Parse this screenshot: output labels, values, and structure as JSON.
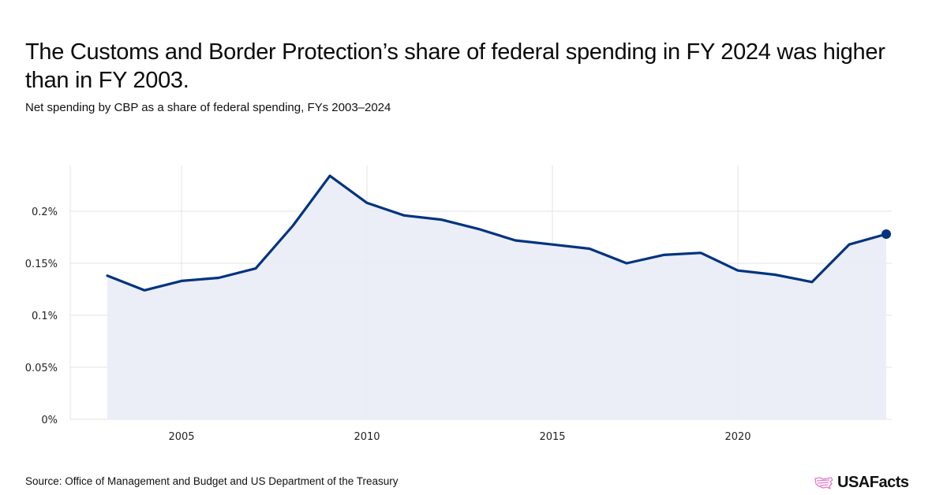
{
  "header": {
    "title": "The Customs and Border Protection’s share of federal spending in FY 2024 was higher than in FY 2003.",
    "subtitle": "Net spending by CBP as a share of federal spending, FYs 2003–2024"
  },
  "footer": {
    "source": "Source: Office of Management and Budget and US Department of the Treasury",
    "logo_text": "USAFacts",
    "logo_icon": "us-map-flag-icon"
  },
  "colors": {
    "line": "#003380",
    "area": "#E9ECF5",
    "grid": "#E3E3E6",
    "logo_accent": "#E879C6"
  },
  "chart_data": {
    "type": "area",
    "title": "The Customs and Border Protection’s share of federal spending in FY 2024 was higher than in FY 2003.",
    "subtitle": "Net spending by CBP as a share of federal spending, FYs 2003–2024",
    "xlabel": "",
    "ylabel": "",
    "x": [
      2003,
      2004,
      2005,
      2006,
      2007,
      2008,
      2009,
      2010,
      2011,
      2012,
      2013,
      2014,
      2015,
      2016,
      2017,
      2018,
      2019,
      2020,
      2021,
      2022,
      2023,
      2024
    ],
    "series": [
      {
        "name": "CBP share of federal spending (%)",
        "values": [
          0.138,
          0.124,
          0.133,
          0.136,
          0.145,
          0.186,
          0.234,
          0.208,
          0.196,
          0.192,
          0.183,
          0.172,
          0.168,
          0.164,
          0.15,
          0.158,
          0.16,
          0.143,
          0.139,
          0.132,
          0.168,
          0.178
        ]
      }
    ],
    "xlim": [
      2001,
      2025.2
    ],
    "ylim": [
      0,
      0.245
    ],
    "yticks": [
      0,
      0.05,
      0.1,
      0.15,
      0.2
    ],
    "ytick_labels": [
      "0%",
      "0.05%",
      "0.1%",
      "0.15%",
      "0.2%"
    ],
    "xticks": [
      2005,
      2010,
      2015,
      2020
    ],
    "xtick_labels": [
      "2005",
      "2010",
      "2015",
      "2020"
    ],
    "grid": true,
    "legend": "none",
    "end_marker": true
  }
}
